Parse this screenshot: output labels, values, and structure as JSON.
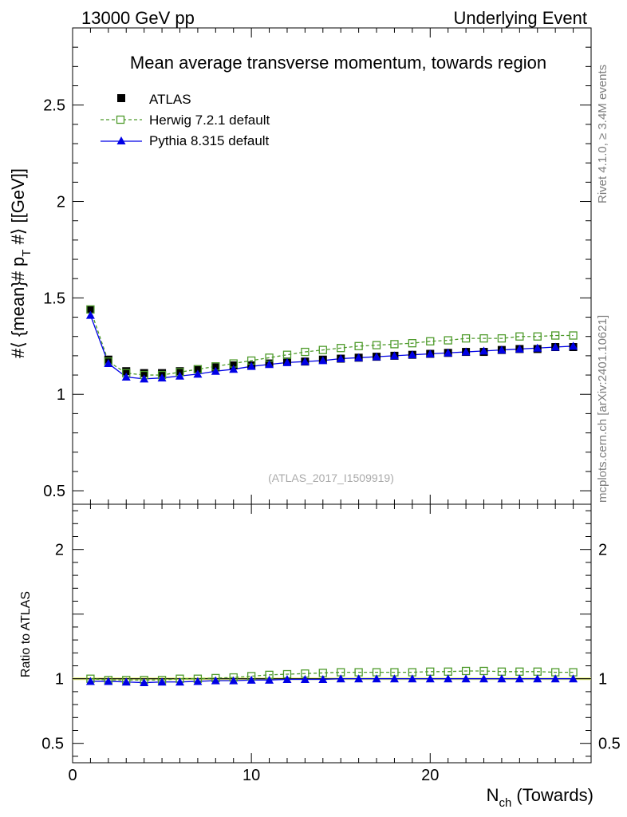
{
  "header": {
    "left": "13000 GeV pp",
    "right": "Underlying Event"
  },
  "side": {
    "rivet": "Rivet 4.1.0, ≥ 3.4M events",
    "mcplots": "mcplots.cern.ch [arXiv:2401.10621]"
  },
  "chart_data": {
    "type": "scatter",
    "title": "Mean average transverse momentum, towards region",
    "watermark": "(ATLAS_2017_I1509919)",
    "ylabel": "#⟨ {mean}# p_T #⟩ [[GeV]]",
    "ylabel_main": "#⟨ {mean}# p",
    "ylabel_sub": "T",
    "ylabel_tail": " #⟩ [[GeV]]",
    "ratio_ylabel": "Ratio to ATLAS",
    "xlabel_main": "N",
    "xlabel_sub": "ch",
    "xlabel_tail": " (Towards)",
    "xlim": [
      0,
      29
    ],
    "ylim": [
      0.43,
      2.9
    ],
    "ratio_ylim": [
      0.35,
      2.35
    ],
    "x_ticks": [
      "0",
      "10",
      "20"
    ],
    "y_ticks": [
      "0.5",
      "1",
      "1.5",
      "2",
      "2.5"
    ],
    "ratio_y_ticks": [
      "0.5",
      "1",
      "2"
    ],
    "x": [
      1,
      2,
      3,
      4,
      5,
      6,
      7,
      8,
      9,
      10,
      11,
      12,
      13,
      14,
      15,
      16,
      17,
      18,
      19,
      20,
      21,
      22,
      23,
      24,
      25,
      26,
      27,
      28
    ],
    "series": [
      {
        "name": "ATLAS",
        "color": "#000000",
        "values": [
          1.44,
          1.18,
          1.12,
          1.11,
          1.11,
          1.12,
          1.13,
          1.14,
          1.15,
          1.15,
          1.16,
          1.17,
          1.17,
          1.18,
          1.185,
          1.19,
          1.195,
          1.2,
          1.205,
          1.21,
          1.215,
          1.22,
          1.22,
          1.23,
          1.235,
          1.235,
          1.245,
          1.245
        ]
      },
      {
        "name": "Herwig 7.2.1 default",
        "color": "#4d9a2a",
        "values": [
          1.44,
          1.17,
          1.11,
          1.1,
          1.1,
          1.115,
          1.13,
          1.145,
          1.16,
          1.175,
          1.19,
          1.205,
          1.22,
          1.23,
          1.24,
          1.25,
          1.255,
          1.26,
          1.265,
          1.275,
          1.28,
          1.29,
          1.29,
          1.29,
          1.3,
          1.3,
          1.305,
          1.305
        ],
        "ratio": [
          1.0,
          0.99,
          0.99,
          0.99,
          0.99,
          1.0,
          1.0,
          1.005,
          1.01,
          1.02,
          1.03,
          1.035,
          1.04,
          1.045,
          1.05,
          1.05,
          1.05,
          1.05,
          1.05,
          1.055,
          1.055,
          1.06,
          1.06,
          1.055,
          1.055,
          1.055,
          1.05,
          1.05
        ]
      },
      {
        "name": "Pythia 8.315 default",
        "color": "#0000e6",
        "values": [
          1.41,
          1.16,
          1.09,
          1.08,
          1.085,
          1.095,
          1.105,
          1.12,
          1.13,
          1.145,
          1.155,
          1.165,
          1.17,
          1.175,
          1.185,
          1.19,
          1.195,
          1.2,
          1.205,
          1.21,
          1.215,
          1.22,
          1.225,
          1.23,
          1.235,
          1.24,
          1.245,
          1.25
        ],
        "ratio": [
          0.98,
          0.98,
          0.975,
          0.97,
          0.975,
          0.975,
          0.98,
          0.985,
          0.985,
          0.99,
          0.99,
          0.995,
          0.995,
          0.995,
          1.0,
          1.0,
          1.0,
          1.0,
          1.0,
          1.0,
          1.0,
          1.0,
          1.0,
          1.0,
          1.0,
          1.0,
          1.0,
          1.0
        ]
      }
    ]
  }
}
